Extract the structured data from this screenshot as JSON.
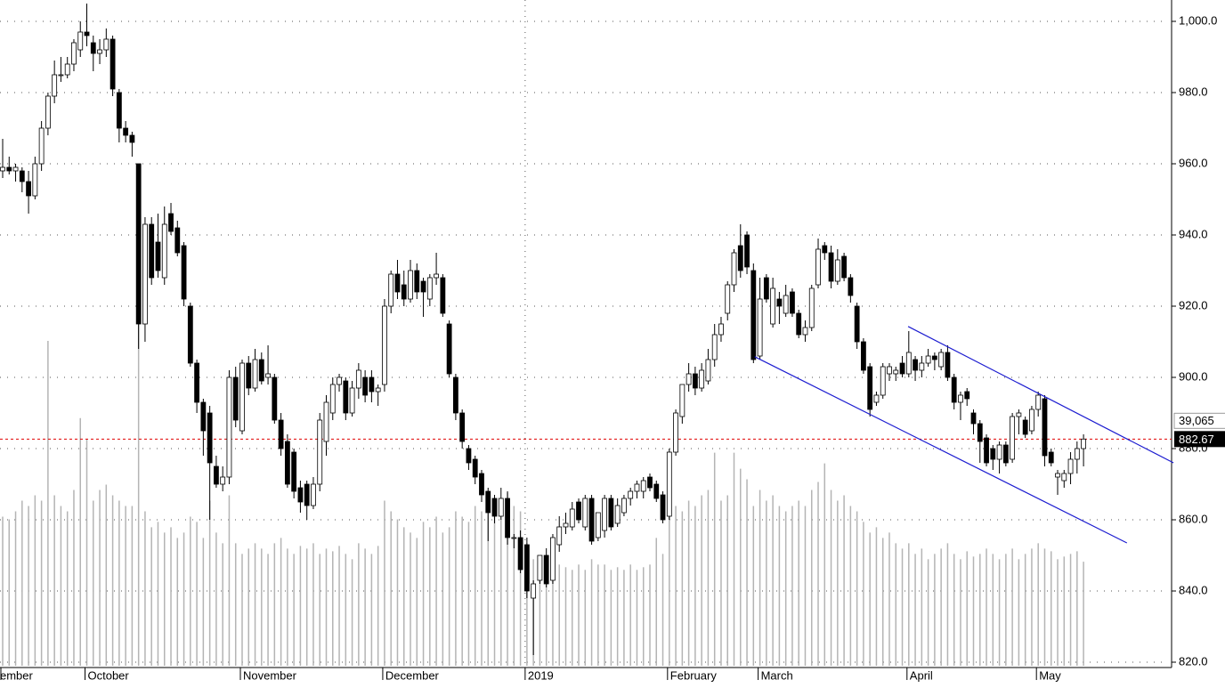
{
  "chart_data": {
    "type": "candlestick",
    "categories": [
      "ember",
      null,
      null,
      null,
      null,
      null,
      null,
      null,
      null,
      null,
      null,
      null,
      null,
      "October",
      null,
      null,
      null,
      null,
      null,
      null,
      null,
      null,
      null,
      null,
      null,
      null,
      null,
      null,
      null,
      null,
      null,
      null,
      null,
      null,
      null,
      null,
      null,
      "November",
      null,
      null,
      null,
      null,
      null,
      null,
      null,
      null,
      null,
      null,
      null,
      null,
      null,
      null,
      null,
      null,
      null,
      null,
      null,
      null,
      null,
      "December",
      null,
      null,
      null,
      null,
      null,
      null,
      null,
      null,
      null,
      null,
      null,
      null,
      null,
      null,
      null,
      null,
      null,
      null,
      null,
      null,
      null,
      "2019",
      null,
      null,
      null,
      null,
      null,
      null,
      null,
      null,
      null,
      null,
      null,
      null,
      null,
      null,
      null,
      null,
      null,
      null,
      null,
      null,
      null,
      "February",
      null,
      null,
      null,
      null,
      null,
      null,
      null,
      null,
      null,
      null,
      null,
      null,
      null,
      "March",
      null,
      null,
      null,
      null,
      null,
      null,
      null,
      null,
      null,
      null,
      null,
      null,
      null,
      null,
      null,
      null,
      null,
      null,
      null,
      null,
      null,
      null,
      "April",
      null,
      null,
      null,
      null,
      null,
      null,
      null,
      null,
      null,
      null,
      null,
      null,
      null,
      null,
      null,
      null,
      null,
      null,
      null,
      "May",
      null,
      null,
      null,
      null,
      null,
      null,
      null
    ],
    "ohlc": [
      [
        958,
        967,
        956,
        959
      ],
      [
        959,
        962,
        957,
        958
      ],
      [
        958,
        960,
        955,
        959
      ],
      [
        958,
        959,
        952,
        955
      ],
      [
        955,
        958,
        946,
        951
      ],
      [
        951,
        962,
        950,
        960
      ],
      [
        960,
        972,
        958,
        970
      ],
      [
        970,
        980,
        968,
        979
      ],
      [
        979,
        989,
        977,
        985
      ],
      [
        985,
        990,
        983,
        985
      ],
      [
        985,
        990,
        984,
        988
      ],
      [
        988,
        995,
        986,
        994
      ],
      [
        992,
        1000,
        990,
        997
      ],
      [
        997,
        1005,
        993,
        996
      ],
      [
        994,
        996,
        986,
        991
      ],
      [
        991,
        995,
        988,
        992
      ],
      [
        992,
        998,
        990,
        995
      ],
      [
        995,
        996,
        979,
        981
      ],
      [
        980,
        981,
        966,
        970
      ],
      [
        970,
        972,
        966,
        968
      ],
      [
        968,
        969,
        962,
        966
      ],
      [
        960,
        960,
        908,
        915
      ],
      [
        915,
        945,
        910,
        943
      ],
      [
        943,
        945,
        926,
        928
      ],
      [
        938,
        946,
        928,
        930
      ],
      [
        928,
        948,
        926,
        943
      ],
      [
        946,
        949,
        940,
        941
      ],
      [
        942,
        944,
        934,
        935
      ],
      [
        937,
        938,
        920,
        922
      ],
      [
        920,
        921,
        903,
        904
      ],
      [
        904,
        905,
        890,
        893
      ],
      [
        893,
        894,
        878,
        885
      ],
      [
        890,
        892,
        860,
        876
      ],
      [
        875,
        878,
        869,
        870
      ],
      [
        870,
        875,
        868,
        872
      ],
      [
        872,
        902,
        870,
        900
      ],
      [
        900,
        903,
        886,
        888
      ],
      [
        885,
        905,
        884,
        904
      ],
      [
        904,
        906,
        895,
        897
      ],
      [
        897,
        908,
        896,
        905
      ],
      [
        905,
        907,
        898,
        899
      ],
      [
        900,
        909,
        898,
        901
      ],
      [
        900,
        901,
        887,
        888
      ],
      [
        888,
        890,
        878,
        880
      ],
      [
        882,
        884,
        869,
        870
      ],
      [
        879,
        880,
        866,
        868
      ],
      [
        869,
        871,
        862,
        865
      ],
      [
        870,
        871,
        860,
        864
      ],
      [
        864,
        872,
        863,
        870
      ],
      [
        870,
        890,
        868,
        888
      ],
      [
        882,
        895,
        878,
        893
      ],
      [
        890,
        900,
        888,
        898
      ],
      [
        898,
        901,
        896,
        900
      ],
      [
        899,
        900,
        888,
        890
      ],
      [
        890,
        899,
        889,
        897
      ],
      [
        897,
        904,
        894,
        902
      ],
      [
        900,
        902,
        893,
        895
      ],
      [
        900,
        902,
        893,
        896
      ],
      [
        896,
        898,
        892,
        897
      ],
      [
        898,
        922,
        896,
        920
      ],
      [
        920,
        930,
        918,
        929
      ],
      [
        929,
        933,
        922,
        924
      ],
      [
        926,
        930,
        920,
        922
      ],
      [
        922,
        933,
        921,
        930
      ],
      [
        930,
        932,
        922,
        924
      ],
      [
        927,
        928,
        917,
        924
      ],
      [
        922,
        929,
        920,
        928
      ],
      [
        928,
        935,
        926,
        929
      ],
      [
        928,
        929,
        917,
        918
      ],
      [
        915,
        916,
        900,
        901
      ],
      [
        900,
        901,
        888,
        890
      ],
      [
        890,
        891,
        880,
        882
      ],
      [
        880,
        881,
        874,
        876
      ],
      [
        877,
        878,
        870,
        872
      ],
      [
        873,
        874,
        865,
        867
      ],
      [
        868,
        869,
        854,
        862
      ],
      [
        866,
        867,
        859,
        861
      ],
      [
        861,
        869,
        860,
        866
      ],
      [
        866,
        868,
        853,
        855
      ],
      [
        855,
        856,
        852,
        855
      ],
      [
        855,
        857,
        845,
        846
      ],
      [
        853,
        855,
        838,
        840
      ],
      [
        838,
        843,
        822,
        842
      ],
      [
        843,
        850,
        842,
        850
      ],
      [
        850,
        852,
        841,
        842
      ],
      [
        843,
        856,
        842,
        855
      ],
      [
        853,
        861,
        851,
        858
      ],
      [
        858,
        862,
        856,
        859
      ],
      [
        858,
        865,
        857,
        863
      ],
      [
        865,
        866,
        859,
        860
      ],
      [
        858,
        867,
        857,
        866
      ],
      [
        866,
        867,
        853,
        854
      ],
      [
        855,
        862,
        854,
        862
      ],
      [
        857,
        867,
        855,
        866
      ],
      [
        866,
        867,
        857,
        858
      ],
      [
        859,
        866,
        858,
        864
      ],
      [
        862,
        867,
        861,
        866
      ],
      [
        866,
        869,
        864,
        868
      ],
      [
        868,
        871,
        866,
        870
      ],
      [
        868,
        872,
        866,
        871
      ],
      [
        872,
        873,
        868,
        869
      ],
      [
        870,
        871,
        865,
        866
      ],
      [
        867,
        868,
        859,
        860
      ],
      [
        861,
        880,
        860,
        879
      ],
      [
        879,
        891,
        878,
        890
      ],
      [
        889,
        898,
        887,
        898
      ],
      [
        898,
        904,
        896,
        901
      ],
      [
        901,
        903,
        895,
        897
      ],
      [
        897,
        904,
        896,
        902
      ],
      [
        899,
        908,
        898,
        905
      ],
      [
        905,
        915,
        903,
        912
      ],
      [
        912,
        917,
        910,
        915
      ],
      [
        918,
        927,
        916,
        926
      ],
      [
        926,
        936,
        924,
        935
      ],
      [
        937,
        943,
        928,
        930
      ],
      [
        940,
        941,
        929,
        931
      ],
      [
        930,
        932,
        904,
        905
      ],
      [
        906,
        928,
        905,
        922
      ],
      [
        928,
        929,
        921,
        922
      ],
      [
        915,
        928,
        914,
        925
      ],
      [
        922,
        924,
        915,
        920
      ],
      [
        918,
        926,
        917,
        923
      ],
      [
        924,
        925,
        917,
        918
      ],
      [
        918,
        919,
        911,
        912
      ],
      [
        912,
        916,
        910,
        914
      ],
      [
        914,
        926,
        913,
        925
      ],
      [
        926,
        939,
        925,
        936
      ],
      [
        937,
        938,
        933,
        935
      ],
      [
        935,
        937,
        925,
        927
      ],
      [
        927,
        936,
        926,
        933
      ],
      [
        934,
        935,
        927,
        928
      ],
      [
        928,
        929,
        921,
        923
      ],
      [
        920,
        921,
        908,
        910
      ],
      [
        910,
        911,
        901,
        902
      ],
      [
        903,
        904,
        889,
        891
      ],
      [
        893,
        896,
        892,
        895
      ],
      [
        895,
        904,
        894,
        903
      ],
      [
        901,
        904,
        899,
        903
      ],
      [
        901,
        903,
        899,
        902
      ],
      [
        904,
        906,
        900,
        901
      ],
      [
        901,
        913,
        900,
        907
      ],
      [
        905,
        906,
        899,
        902
      ],
      [
        902,
        906,
        900,
        904
      ],
      [
        904,
        908,
        903,
        906
      ],
      [
        906,
        907,
        902,
        905
      ],
      [
        903,
        908,
        902,
        907
      ],
      [
        907,
        909,
        899,
        900
      ],
      [
        900,
        901,
        891,
        893
      ],
      [
        893,
        896,
        888,
        895
      ],
      [
        896,
        897,
        892,
        894
      ],
      [
        890,
        891,
        884,
        887
      ],
      [
        887,
        888,
        876,
        882
      ],
      [
        883,
        884,
        875,
        876
      ],
      [
        880,
        881,
        874,
        877
      ],
      [
        877,
        882,
        873,
        881
      ],
      [
        881,
        882,
        875,
        876
      ],
      [
        877,
        890,
        876,
        889
      ],
      [
        889,
        891,
        884,
        890
      ],
      [
        888,
        889,
        883,
        884
      ],
      [
        885,
        892,
        884,
        891
      ],
      [
        891,
        896,
        889,
        895
      ],
      [
        894,
        895,
        875,
        878
      ],
      [
        879,
        880,
        875,
        876
      ],
      [
        872,
        874,
        867,
        873
      ],
      [
        871,
        874,
        869,
        873
      ],
      [
        873,
        879,
        870,
        877
      ],
      [
        877,
        882,
        873,
        880
      ],
      [
        880,
        884,
        875,
        882.67
      ]
    ],
    "up_color": "#ffffff",
    "down_color": "#000000",
    "volume": {
      "color": "#b4b4b4",
      "ylim": [
        0,
        250000
      ],
      "last_label": "39,065",
      "values": [
        56000,
        55000,
        58000,
        62000,
        60000,
        64000,
        62000,
        122000,
        64000,
        60000,
        58000,
        66000,
        93000,
        85000,
        62000,
        66000,
        68000,
        64000,
        62000,
        60000,
        60000,
        135000,
        58000,
        52000,
        54000,
        50000,
        52000,
        48000,
        50000,
        56000,
        54000,
        48000,
        62000,
        50000,
        46000,
        64000,
        46000,
        42000,
        44000,
        46000,
        44000,
        42000,
        46000,
        48000,
        44000,
        42000,
        45000,
        44000,
        46000,
        42000,
        44000,
        43000,
        45000,
        42000,
        40000,
        46000,
        44000,
        42000,
        45000,
        62000,
        58000,
        55000,
        52000,
        50000,
        48000,
        54000,
        52000,
        56000,
        50000,
        52000,
        58000,
        56000,
        54000,
        60000,
        58000,
        62000,
        56000,
        55000,
        65000,
        60000,
        58000,
        46000,
        40000,
        38000,
        36000,
        36000,
        38000,
        37000,
        36000,
        38000,
        36000,
        40000,
        38000,
        38000,
        36000,
        37000,
        36000,
        38000,
        36000,
        37000,
        38000,
        48000,
        42000,
        62000,
        60000,
        58000,
        62000,
        60000,
        64000,
        66000,
        80000,
        62000,
        64000,
        80000,
        74000,
        70000,
        60000,
        66000,
        62000,
        64000,
        60000,
        58000,
        60000,
        62000,
        60000,
        66000,
        69000,
        76000,
        66000,
        62000,
        64000,
        60000,
        58000,
        54000,
        50000,
        52000,
        48000,
        50000,
        46000,
        44000,
        46000,
        42000,
        44000,
        40000,
        42000,
        44000,
        46000,
        42000,
        40000,
        43000,
        41000,
        42000,
        44000,
        42000,
        40000,
        42000,
        44000,
        40000,
        42000,
        44000,
        46000,
        44000,
        43000,
        40000,
        41000,
        42000,
        43000,
        39065
      ]
    },
    "last_price": 882.67,
    "last_price_color": "#e00000",
    "trendlines": [
      {
        "color": "#1c1cd0",
        "x": [
          139.9,
          180.9
        ],
        "y": [
          914.3,
          876
        ]
      },
      {
        "color": "#1c1cd0",
        "x": [
          116.2,
          173.7
        ],
        "y": [
          905.8,
          853.5
        ]
      }
    ],
    "ylim": [
      819,
      1006
    ],
    "yticks": [
      {
        "value": 820,
        "label": "820.0"
      },
      {
        "value": 840,
        "label": "840.0"
      },
      {
        "value": 860,
        "label": "860.0"
      },
      {
        "value": 880,
        "label": "880.0"
      },
      {
        "value": 900,
        "label": "900.0"
      },
      {
        "value": 920,
        "label": "920.0"
      },
      {
        "value": 940,
        "label": "940.0"
      },
      {
        "value": 960,
        "label": "960.0"
      },
      {
        "value": 980,
        "label": "980.0"
      },
      {
        "value": 1000,
        "label": "1,000.0"
      }
    ],
    "grid": true
  }
}
